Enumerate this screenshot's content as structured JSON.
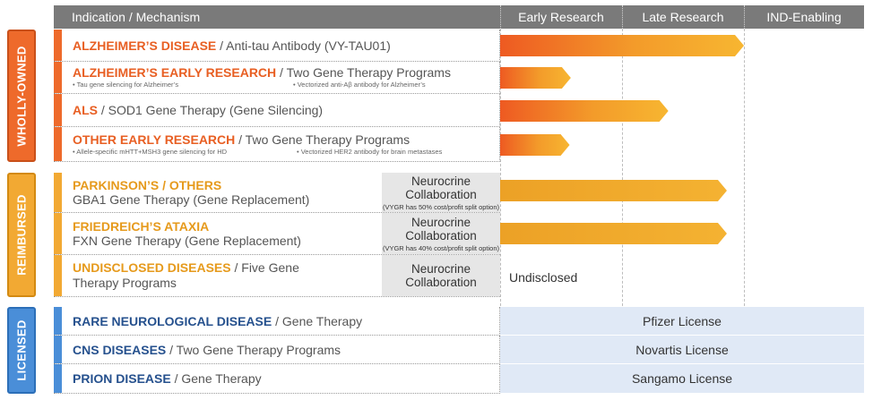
{
  "header": {
    "indication": "Indication / Mechanism",
    "stages": [
      "Early Research",
      "Late Research",
      "IND-Enabling"
    ]
  },
  "groups": {
    "wholly_owned": "WHOLLY-OWNED",
    "reimbursed": "REIMBURSED",
    "licensed": "LICENSED"
  },
  "rows": {
    "r1": {
      "name": "ALZHEIMER’S DISEASE",
      "desc": " / Anti-tau Antibody (VY-TAU01)",
      "progress_stage": 2.0
    },
    "r2": {
      "name": "ALZHEIMER’S EARLY RESEARCH",
      "desc": " / Two Gene Therapy Programs",
      "sub1": "•  Tau gene silencing for Alzheimer’s",
      "sub2": "•  Vectorized anti-Aβ antibody for Alzheimer’s",
      "progress_stage": 0.58
    },
    "r3": {
      "name": "ALS",
      "desc": " / SOD1 Gene Therapy (Gene Silencing)",
      "progress_stage": 1.38
    },
    "r4": {
      "name": "OTHER EARLY RESEARCH",
      "desc": " / Two Gene Therapy Programs",
      "sub1": "•  Allele-specific mHTT+MSH3 gene silencing for HD",
      "sub2": "•  Vectorized HER2 antibody for brain metastases",
      "progress_stage": 0.57
    },
    "r5": {
      "name": "PARKINSON’S / OTHERS",
      "desc": "GBA1 Gene Therapy (Gene Replacement)",
      "collab": "Neurocrine Collaboration",
      "collab_note": "(VYGR has 50% cost/profit split option)",
      "progress_stage": 1.86
    },
    "r6": {
      "name": "FRIEDREICH’S ATAXIA",
      "desc": "FXN Gene Therapy (Gene Replacement)",
      "collab": "Neurocrine Collaboration",
      "collab_note": "(VYGR has 40% cost/profit split option)",
      "progress_stage": 1.86
    },
    "r7": {
      "name": "UNDISCLOSED DISEASES",
      "desc_a": "  /  Five Gene",
      "desc_b": "Therapy Programs",
      "collab": "Neurocrine Collaboration",
      "status": "Undisclosed"
    },
    "r8": {
      "name": "RARE NEUROLOGICAL DISEASE",
      "desc": "  /  Gene Therapy",
      "license": "Pfizer License"
    },
    "r9": {
      "name": "CNS DISEASES",
      "desc": "  /  Two Gene Therapy Programs",
      "license": "Novartis License"
    },
    "r10": {
      "name": "PRION DISEASE",
      "desc": " / Gene Therapy",
      "license": "Sangamo License"
    }
  },
  "colors": {
    "orange": "#ee6a2b",
    "yellow": "#f2a933",
    "blue": "#4a8ed8",
    "header_gray": "#7a7a7a",
    "license_band": "#e0e9f6"
  }
}
